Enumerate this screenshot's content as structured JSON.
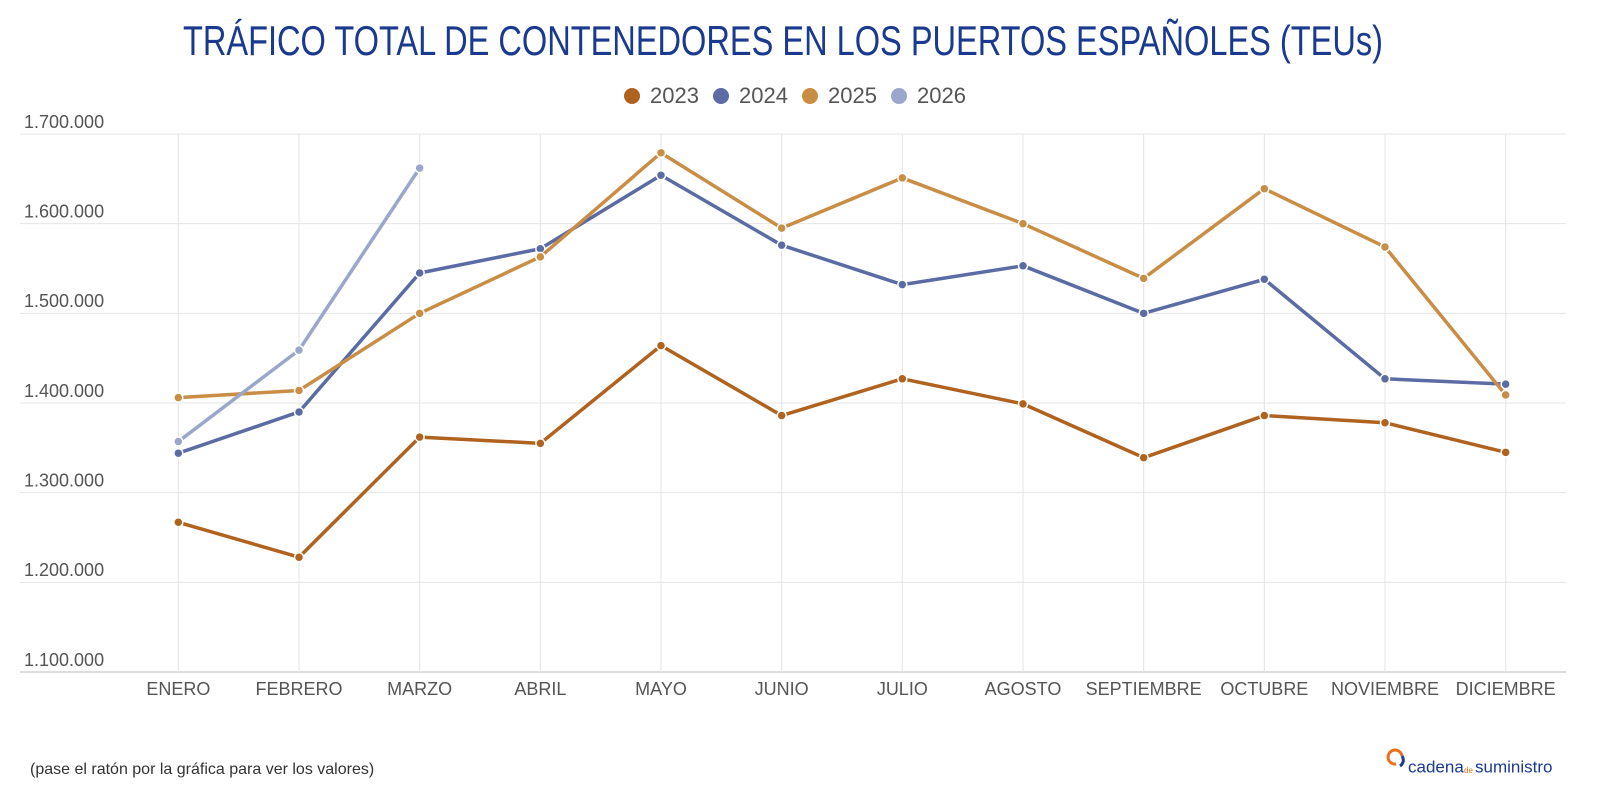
{
  "chart_data": {
    "type": "line",
    "title": "TRÁFICO TOTAL DE CONTENEDORES EN LOS PUERTOS ESPAÑOLES (TEUs)",
    "categories": [
      "ENERO",
      "FEBRERO",
      "MARZO",
      "ABRIL",
      "MAYO",
      "JUNIO",
      "JULIO",
      "AGOSTO",
      "SEPTIEMBRE",
      "OCTUBRE",
      "NOVIEMBRE",
      "DICIEMBRE"
    ],
    "series": [
      {
        "name": "2023",
        "color": "#b0621f",
        "values": [
          1267000,
          1228000,
          1362000,
          1355000,
          1464000,
          1386000,
          1427000,
          1399000,
          1339000,
          1386000,
          1378000,
          1345000
        ]
      },
      {
        "name": "2024",
        "color": "#5b6ba3",
        "values": [
          1344000,
          1390000,
          1545000,
          1572000,
          1654000,
          1576000,
          1532000,
          1553000,
          1500000,
          1538000,
          1427000,
          1421000
        ]
      },
      {
        "name": "2025",
        "color": "#c98e45",
        "values": [
          1406000,
          1414000,
          1500000,
          1563000,
          1679000,
          1595000,
          1651000,
          1600000,
          1539000,
          1639000,
          1574000,
          1409000
        ]
      },
      {
        "name": "2026",
        "color": "#9aa6cc",
        "values": [
          1357000,
          1459000,
          1662000,
          null,
          null,
          null,
          null,
          null,
          null,
          null,
          null,
          null
        ]
      }
    ],
    "ylim": [
      1100000,
      1700000
    ],
    "yticks": [
      {
        "value": 1100000,
        "label": "1.100.000"
      },
      {
        "value": 1200000,
        "label": "1.200.000"
      },
      {
        "value": 1300000,
        "label": "1.300.000"
      },
      {
        "value": 1400000,
        "label": "1.400.000"
      },
      {
        "value": 1500000,
        "label": "1.500.000"
      },
      {
        "value": 1600000,
        "label": "1.600.000"
      },
      {
        "value": 1700000,
        "label": "1.700.000"
      }
    ],
    "grid": true,
    "legend": "top",
    "note": "(pase el ratón por la gráfica para ver los valores)",
    "logo": [
      "cadena",
      "de",
      "suministro"
    ]
  }
}
